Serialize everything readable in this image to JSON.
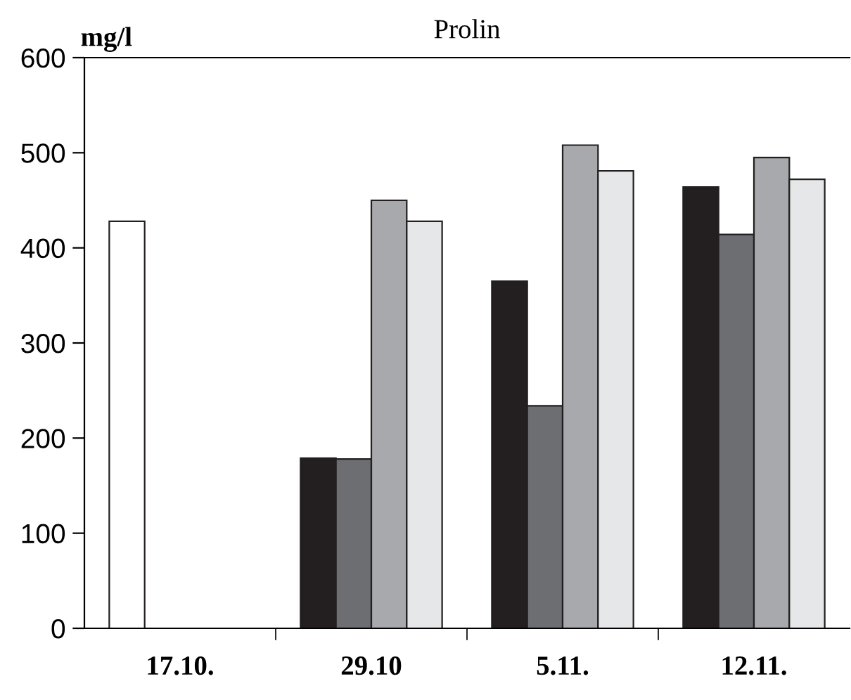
{
  "chart_data": {
    "type": "bar",
    "title": "Prolin",
    "ylabel": "mg/l",
    "categories": [
      "17.10.",
      "29.10",
      "5.11.",
      "12.11."
    ],
    "series": [
      {
        "colors": [
          "#ffffff",
          "#231f20",
          "#231f20",
          "#231f20"
        ],
        "values": [
          428,
          179,
          365,
          464
        ]
      },
      {
        "color": "#6d6e71",
        "values": [
          null,
          178,
          234,
          414
        ]
      },
      {
        "color": "#a7a9ac",
        "values": [
          null,
          450,
          508,
          495
        ]
      },
      {
        "color": "#e6e7e8",
        "values": [
          null,
          428,
          481,
          472
        ]
      }
    ],
    "ylim": [
      0,
      600
    ],
    "yticks": [
      0,
      100,
      200,
      300,
      400,
      500,
      600
    ],
    "grid": false,
    "legend": false
  }
}
